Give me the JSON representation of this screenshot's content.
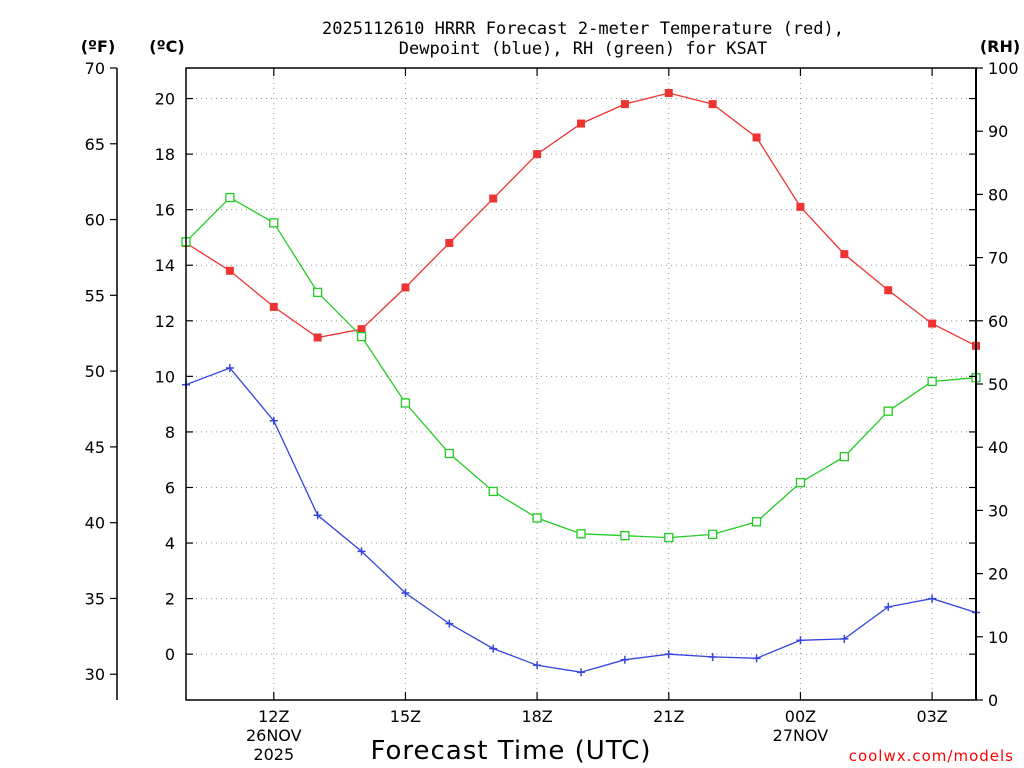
{
  "chart_data": {
    "type": "line",
    "title_lines": [
      "2025112610 HRRR Forecast 2-meter Temperature (red),",
      "Dewpoint (blue), RH (green) for KSAT"
    ],
    "xlabel": "Forecast Time (UTC)",
    "credit": "coolwx.com/models",
    "axes": {
      "fahrenheit": {
        "unit_label": "(ºF)",
        "range": [
          28.3,
          70
        ],
        "ticks": [
          70,
          65,
          60,
          55,
          50,
          45,
          40,
          35,
          30
        ]
      },
      "celsius": {
        "unit_label": "(ºC)",
        "range": [
          -1.65,
          21.1
        ],
        "ticks": [
          20,
          18,
          16,
          14,
          12,
          10,
          8,
          6,
          4,
          2,
          0
        ]
      },
      "rh": {
        "unit_label": "(RH)",
        "range": [
          0,
          100
        ],
        "ticks": [
          100,
          90,
          80,
          70,
          60,
          50,
          40,
          30,
          20,
          10,
          0
        ]
      }
    },
    "x_hour_range": [
      10,
      28
    ],
    "x_ticks": [
      {
        "hour": 12,
        "label": "12Z",
        "line2": "26NOV",
        "line3": "2025"
      },
      {
        "hour": 15,
        "label": "15Z",
        "line2": "",
        "line3": ""
      },
      {
        "hour": 18,
        "label": "18Z",
        "line2": "",
        "line3": ""
      },
      {
        "hour": 21,
        "label": "21Z",
        "line2": "",
        "line3": ""
      },
      {
        "hour": 24,
        "label": "00Z",
        "line2": "27NOV",
        "line3": ""
      },
      {
        "hour": 27,
        "label": "03Z",
        "line2": "",
        "line3": ""
      }
    ],
    "x": [
      10,
      11,
      12,
      13,
      14,
      15,
      16,
      17,
      18,
      19,
      20,
      21,
      22,
      23,
      24,
      25,
      26,
      27,
      28
    ],
    "series": [
      {
        "name": "2-meter Temperature",
        "unit": "°C",
        "color": "#ee3333",
        "marker": "filled-square",
        "values": [
          14.8,
          13.8,
          12.5,
          11.4,
          11.7,
          13.2,
          14.8,
          16.4,
          18.0,
          19.1,
          19.8,
          20.2,
          19.8,
          18.6,
          16.1,
          14.4,
          13.1,
          11.9,
          11.1
        ]
      },
      {
        "name": "Dewpoint",
        "unit": "°C",
        "color": "#3344dd",
        "marker": "plus",
        "values": [
          9.7,
          10.3,
          8.4,
          5.0,
          3.7,
          2.2,
          1.1,
          0.2,
          -0.4,
          -0.65,
          -0.2,
          0.0,
          -0.1,
          -0.15,
          0.5,
          0.55,
          1.7,
          2.0,
          1.5
        ]
      },
      {
        "name": "RH",
        "unit": "%",
        "color": "#22cc22",
        "marker": "open-square",
        "values": [
          72.5,
          79.5,
          75.5,
          64.5,
          57.5,
          47.0,
          39.0,
          33.0,
          28.8,
          26.3,
          26.0,
          25.7,
          26.2,
          28.2,
          34.4,
          38.5,
          45.7,
          50.4,
          51.0
        ]
      }
    ]
  }
}
